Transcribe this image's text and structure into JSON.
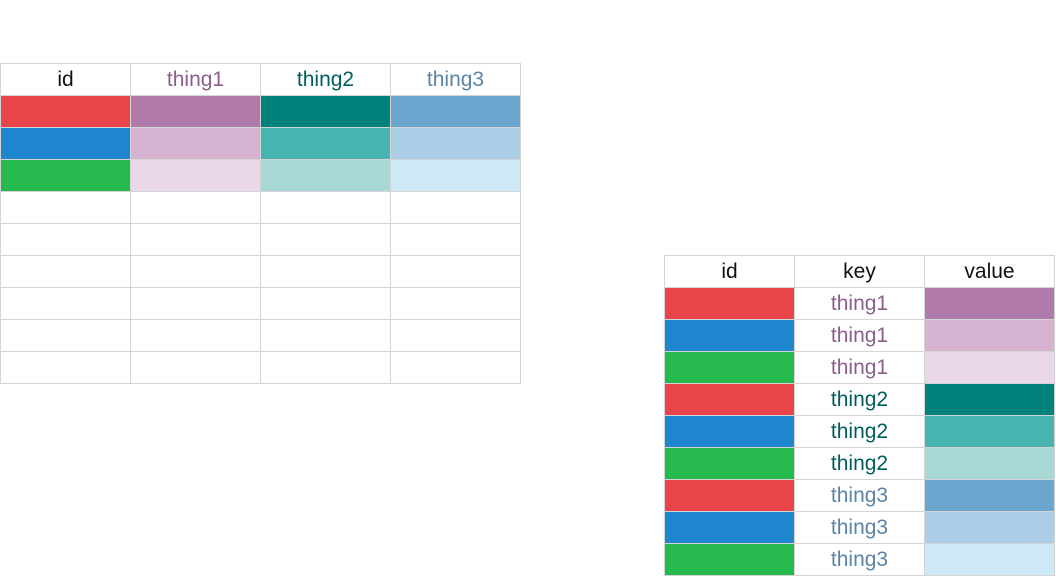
{
  "colors": {
    "header_text": "#111111",
    "border": "#d4d4d4",
    "thing1": "#8c5e8c",
    "thing2": "#005f5a",
    "thing3": "#5d84a5"
  },
  "wide": {
    "headers": [
      "id",
      "thing1",
      "thing2",
      "thing3"
    ],
    "header_colors": [
      "#111111",
      "#8c5e8c",
      "#005f5a",
      "#5d84a5"
    ],
    "rows": [
      [
        "#e8454a",
        "#b07aab",
        "#00827a",
        "#6aa6ce"
      ],
      [
        "#1f87cf",
        "#d6b4d1",
        "#48b5b2",
        "#a9cee6"
      ],
      [
        "#27bb4f",
        "#ead8e8",
        "#a8d8d6",
        "#cfe8f6"
      ],
      [
        "",
        "",
        "",
        ""
      ],
      [
        "",
        "",
        "",
        ""
      ],
      [
        "",
        "",
        "",
        ""
      ],
      [
        "",
        "",
        "",
        ""
      ],
      [
        "",
        "",
        "",
        ""
      ],
      [
        "",
        "",
        "",
        ""
      ]
    ]
  },
  "long": {
    "headers": [
      "id",
      "key",
      "value"
    ],
    "rows": [
      {
        "id": "#e8454a",
        "key": "thing1",
        "key_color": "#8c5e8c",
        "value": "#b07aab"
      },
      {
        "id": "#1f87cf",
        "key": "thing1",
        "key_color": "#8c5e8c",
        "value": "#d6b4d1"
      },
      {
        "id": "#27bb4f",
        "key": "thing1",
        "key_color": "#8c5e8c",
        "value": "#ead8e8"
      },
      {
        "id": "#e8454a",
        "key": "thing2",
        "key_color": "#005f5a",
        "value": "#00827a"
      },
      {
        "id": "#1f87cf",
        "key": "thing2",
        "key_color": "#005f5a",
        "value": "#48b5b2"
      },
      {
        "id": "#27bb4f",
        "key": "thing2",
        "key_color": "#005f5a",
        "value": "#a8d8d6"
      },
      {
        "id": "#e8454a",
        "key": "thing3",
        "key_color": "#5d84a5",
        "value": "#6aa6ce"
      },
      {
        "id": "#1f87cf",
        "key": "thing3",
        "key_color": "#5d84a5",
        "value": "#a9cee6"
      },
      {
        "id": "#27bb4f",
        "key": "thing3",
        "key_color": "#5d84a5",
        "value": "#cfe8f6"
      }
    ]
  }
}
